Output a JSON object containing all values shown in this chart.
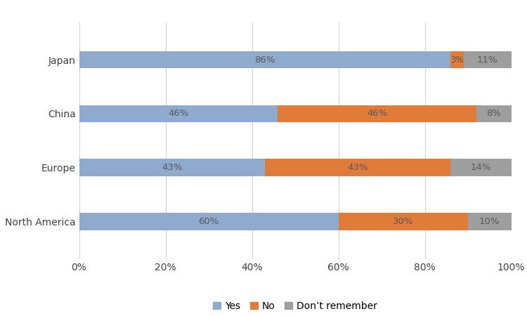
{
  "categories": [
    "North America",
    "Europe",
    "China",
    "Japan"
  ],
  "yes": [
    60,
    43,
    46,
    86
  ],
  "no": [
    30,
    43,
    46,
    3
  ],
  "dont": [
    10,
    14,
    8,
    11
  ],
  "yes_color": "#8eaacd",
  "no_color": "#e07b39",
  "dont_color": "#9e9e9e",
  "xlabel_ticks": [
    0,
    20,
    40,
    60,
    80,
    100
  ],
  "xlabel_labels": [
    "0%",
    "20%",
    "40%",
    "60%",
    "80%",
    "100%"
  ],
  "legend_labels": [
    "Yes",
    "No",
    "Don’t remember"
  ],
  "bar_height": 0.32,
  "label_fontsize": 9.5,
  "tick_fontsize": 10,
  "legend_fontsize": 10,
  "label_color": "#595959"
}
